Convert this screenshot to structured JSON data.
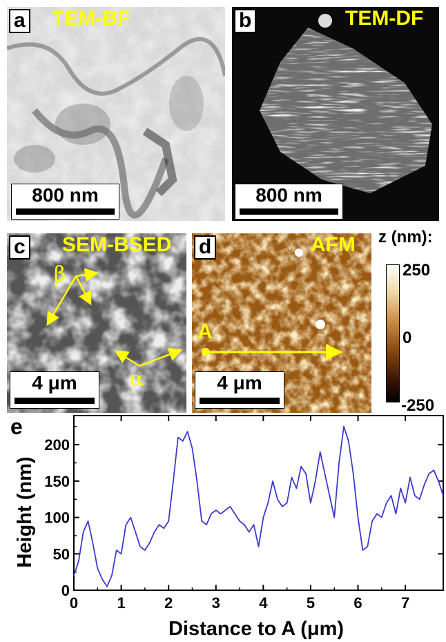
{
  "panels": {
    "a": {
      "letter": "a",
      "title": "TEM-BF",
      "scale": "800 nm"
    },
    "b": {
      "letter": "b",
      "title": "TEM-DF",
      "scale": "800 nm"
    },
    "c": {
      "letter": "c",
      "title": "SEM-BSED",
      "scale": "4 μm",
      "label_beta": "β",
      "label_alpha": "α"
    },
    "d": {
      "letter": "d",
      "title": "AFM",
      "scale": "4 μm",
      "marker": "A"
    },
    "e": {
      "letter": "e"
    }
  },
  "colorbar": {
    "title": "z (nm):",
    "max": "250",
    "mid": "0",
    "min": "-250"
  },
  "colors": {
    "label_yellow": "#ffff00",
    "line_blue": "#3a3ad0",
    "afm_dark": "#2a0a00",
    "afm_light": "#fff6e0"
  },
  "chart_data": {
    "type": "line",
    "xlabel": "Distance to A (μm)",
    "ylabel": "Height (nm)",
    "xlim": [
      0,
      7.8
    ],
    "ylim": [
      0,
      240
    ],
    "xticks": [
      "0",
      "1",
      "2",
      "3",
      "4",
      "5",
      "6",
      "7"
    ],
    "yticks": [
      "0",
      "50",
      "100",
      "150",
      "200"
    ],
    "grid": false,
    "series": [
      {
        "x": [
          0,
          0.1,
          0.2,
          0.3,
          0.4,
          0.5,
          0.6,
          0.7,
          0.8,
          0.9,
          1.0,
          1.1,
          1.2,
          1.3,
          1.4,
          1.5,
          1.6,
          1.7,
          1.8,
          1.9,
          2.0,
          2.1,
          2.2,
          2.3,
          2.4,
          2.5,
          2.6,
          2.7,
          2.8,
          2.9,
          3.0,
          3.1,
          3.2,
          3.3,
          3.4,
          3.5,
          3.6,
          3.7,
          3.8,
          3.9,
          4.0,
          4.1,
          4.2,
          4.3,
          4.4,
          4.5,
          4.6,
          4.7,
          4.8,
          4.9,
          5.0,
          5.1,
          5.2,
          5.3,
          5.4,
          5.5,
          5.6,
          5.7,
          5.8,
          5.9,
          6.0,
          6.1,
          6.2,
          6.3,
          6.4,
          6.5,
          6.6,
          6.7,
          6.8,
          6.9,
          7.0,
          7.1,
          7.2,
          7.3,
          7.4,
          7.5,
          7.6,
          7.7,
          7.8
        ],
        "y": [
          20,
          40,
          80,
          95,
          65,
          30,
          15,
          5,
          20,
          55,
          50,
          90,
          100,
          80,
          60,
          55,
          65,
          80,
          90,
          85,
          95,
          150,
          210,
          205,
          218,
          195,
          150,
          95,
          90,
          105,
          110,
          105,
          110,
          115,
          105,
          95,
          90,
          80,
          90,
          60,
          100,
          120,
          150,
          125,
          115,
          120,
          155,
          140,
          170,
          160,
          120,
          150,
          190,
          160,
          130,
          100,
          175,
          225,
          205,
          160,
          100,
          55,
          60,
          95,
          105,
          100,
          120,
          130,
          105,
          140,
          120,
          155,
          130,
          125,
          145,
          160,
          165,
          150,
          130
        ]
      }
    ]
  }
}
